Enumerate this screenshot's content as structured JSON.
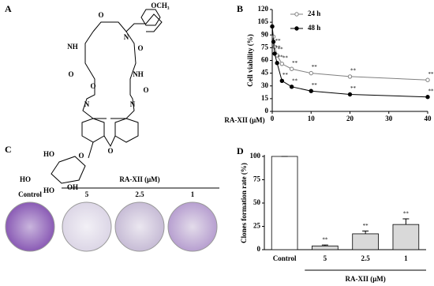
{
  "panels": {
    "a": "A",
    "b": "B",
    "c": "C",
    "d": "D"
  },
  "structure": {
    "labels": [
      "OCH₃",
      "O",
      "N",
      "NH",
      "O",
      "O",
      "NH",
      "O",
      "N",
      "N",
      "O",
      "O",
      "HO",
      "O",
      "HO",
      "HO",
      "OH"
    ]
  },
  "images": {
    "header": "RA-XII (μM)",
    "labels": [
      "Control",
      "5",
      "2.5",
      "1"
    ]
  },
  "chart_data": [
    {
      "type": "line",
      "xlabel": "RA-XII (μM)",
      "ylabel": "Cell viability (%)",
      "x": [
        0,
        0.3125,
        0.625,
        1.25,
        2.5,
        5,
        10,
        20,
        40
      ],
      "series": [
        {
          "name": "24 h",
          "color": "#808080",
          "values": [
            100,
            88,
            76,
            66,
            56,
            50,
            45,
            41,
            37
          ]
        },
        {
          "name": "48 h",
          "color": "#000000",
          "values": [
            100,
            82,
            68,
            57,
            36,
            29,
            24,
            20,
            17
          ]
        }
      ],
      "significance_label": "**",
      "xlim": [
        0,
        40
      ],
      "xticks": [
        0,
        10,
        20,
        30,
        40
      ],
      "ylim": [
        0,
        120
      ],
      "yticks": [
        0,
        15,
        30,
        45,
        60,
        75,
        90,
        105,
        120
      ],
      "legend": "top-left"
    },
    {
      "type": "bar",
      "ylabel": "Clones formation rate (%)",
      "categories": [
        "Control",
        "5",
        "2.5",
        "1"
      ],
      "values": [
        100,
        4,
        17,
        27
      ],
      "errors": [
        0,
        1,
        3,
        6
      ],
      "colors": [
        "#ffffff",
        "#d9d9d9",
        "#d9d9d9",
        "#d9d9d9"
      ],
      "significance_label": "**",
      "group_label": "RA-XII (μM)",
      "ylim": [
        0,
        100
      ],
      "yticks": [
        0,
        25,
        50,
        75,
        100
      ]
    }
  ]
}
